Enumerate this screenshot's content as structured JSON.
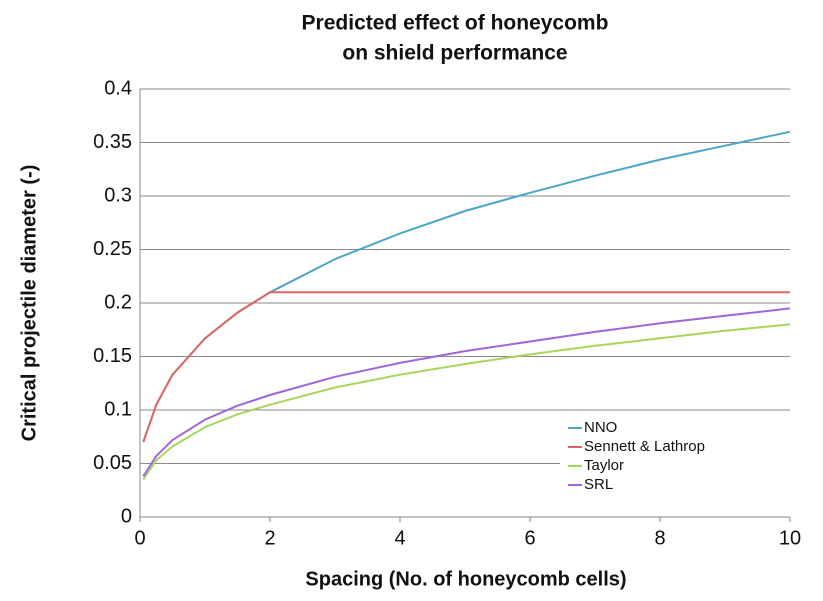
{
  "chart_data": {
    "type": "line",
    "title": [
      "Predicted effect of honeycomb",
      "on shield performance"
    ],
    "x_label": "Spacing (No. of honeycomb cells)",
    "y_label": "Critical projectile diameter (-)",
    "x": [
      0.05,
      0.25,
      0.5,
      1,
      1.5,
      2,
      3,
      4,
      5,
      6,
      7,
      8,
      9,
      10
    ],
    "series": [
      {
        "name": "NNO",
        "color": "#4aa6c8",
        "values": [
          0.07,
          0.105,
          0.133,
          0.167,
          0.191,
          0.21,
          0.241,
          0.265,
          0.286,
          0.303,
          0.319,
          0.334,
          0.347,
          0.36
        ]
      },
      {
        "name": "Sennett & Lathrop",
        "color": "#e06666",
        "values": [
          0.07,
          0.105,
          0.133,
          0.167,
          0.191,
          0.21,
          0.21,
          0.21,
          0.21,
          0.21,
          0.21,
          0.21,
          0.21,
          0.21
        ]
      },
      {
        "name": "Taylor",
        "color": "#a6d65a",
        "values": [
          0.035,
          0.053,
          0.066,
          0.084,
          0.096,
          0.105,
          0.121,
          0.133,
          0.143,
          0.152,
          0.16,
          0.167,
          0.174,
          0.18
        ]
      },
      {
        "name": "SRL",
        "color": "#a066d8",
        "values": [
          0.038,
          0.057,
          0.072,
          0.091,
          0.104,
          0.114,
          0.131,
          0.144,
          0.155,
          0.164,
          0.173,
          0.181,
          0.188,
          0.195
        ]
      }
    ],
    "xlim": [
      0,
      10
    ],
    "xticks": [
      0,
      2,
      4,
      6,
      8,
      10
    ],
    "ylim": [
      0,
      0.4
    ],
    "yticks": [
      0,
      0.05,
      0.1,
      0.15,
      0.2,
      0.25,
      0.3,
      0.35,
      0.4
    ],
    "grid": true,
    "legend": "lower right"
  }
}
